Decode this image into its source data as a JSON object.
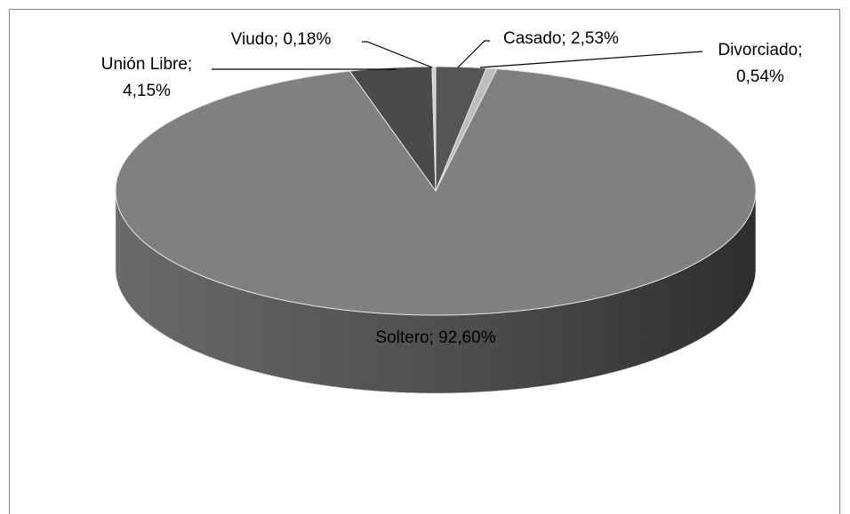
{
  "chart_data": {
    "type": "pie",
    "values": [
      2.53,
      0.54,
      92.6,
      4.15,
      0.18
    ],
    "value_labels": [
      [
        "Casado; 2,53%"
      ],
      [
        "Divorciado;",
        "0,54%"
      ],
      [
        "Soltero; 92,60%"
      ],
      [
        "Unión Libre;",
        "4,15%"
      ],
      [
        "Viudo; 0,18%"
      ]
    ],
    "colors": [
      "#555555",
      "#bdbdbd",
      "#808080",
      "#4a4a4a",
      "#d0d0d0"
    ]
  }
}
